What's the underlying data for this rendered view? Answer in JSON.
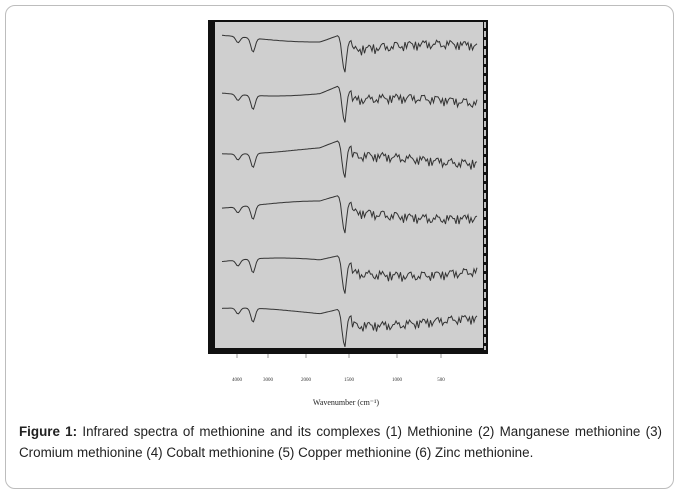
{
  "figure": {
    "ticks": [
      "4000",
      "3000",
      "2000",
      "1500",
      "1000",
      "500"
    ],
    "axis_label": "Wavenumber (cm⁻¹)",
    "caption": {
      "label": "Figure 1:",
      "text": "Infrared spectra of methionine and its complexes (1) Methionine (2) Manganese methionine (3) Cromium methionine (4) Cobalt methionine (5) Copper methionine (6) Zinc methionine."
    }
  }
}
